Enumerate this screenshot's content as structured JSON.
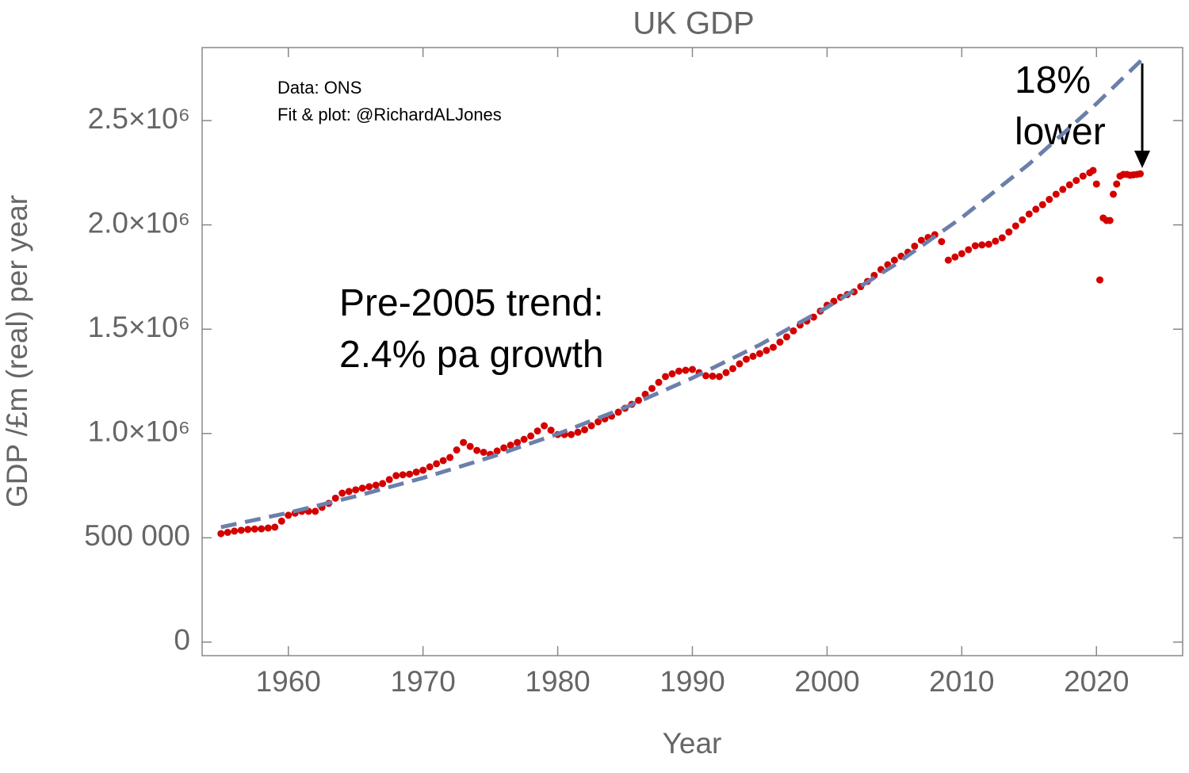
{
  "chart_data": {
    "type": "scatter",
    "title": "UK GDP",
    "x_label": "Year",
    "y_label": "GDP /£m (real) per year",
    "annotations": [
      "Data: ONS",
      "Fit & plot: @RichardALJones",
      "Pre-2005 trend:",
      "2.4% pa growth",
      "18%",
      "lower"
    ],
    "xlim": [
      1953.6,
      2026.4
    ],
    "ylim": [
      -65000,
      2850000
    ],
    "xticks": [
      1960,
      1970,
      1980,
      1990,
      2000,
      2010,
      2020
    ],
    "yticks": [
      0,
      {
        "value": 500000,
        "label": "500 000"
      },
      {
        "value": 1000000,
        "label": "1.0×10⁶"
      },
      {
        "value": 1500000,
        "label": "1.5×10⁶"
      },
      {
        "value": 2000000,
        "label": "2.0×10⁶"
      },
      {
        "value": 2500000,
        "label": "2.5×10⁶"
      }
    ],
    "series": [
      {
        "color": "#d40000",
        "x": [
          1955,
          1955.5,
          1956,
          1956.5,
          1957,
          1957.5,
          1958,
          1958.5,
          1959,
          1959.5,
          1960,
          1960.5,
          1961,
          1961.5,
          1962,
          1962.5,
          1963,
          1963.5,
          1964,
          1964.5,
          1965,
          1965.5,
          1966,
          1966.5,
          1967,
          1967.5,
          1968,
          1968.5,
          1969,
          1969.5,
          1970,
          1970.5,
          1971,
          1971.5,
          1972,
          1972.5,
          1973,
          1973.5,
          1974,
          1974.5,
          1975,
          1975.5,
          1976,
          1976.5,
          1977,
          1977.5,
          1978,
          1978.5,
          1979,
          1979.5,
          1980,
          1980.5,
          1981,
          1981.5,
          1982,
          1982.5,
          1983,
          1983.5,
          1984,
          1984.5,
          1985,
          1985.5,
          1986,
          1986.5,
          1987,
          1987.5,
          1988,
          1988.5,
          1989,
          1989.5,
          1990,
          1990.5,
          1991,
          1991.5,
          1992,
          1992.5,
          1993,
          1993.5,
          1994,
          1994.5,
          1995,
          1995.5,
          1996,
          1996.5,
          1997,
          1997.5,
          1998,
          1998.5,
          1999,
          1999.5,
          2000,
          2000.5,
          2001,
          2001.5,
          2002,
          2002.5,
          2003,
          2003.5,
          2004,
          2004.5,
          2005,
          2005.5,
          2006,
          2006.5,
          2007,
          2007.5,
          2008,
          2008.5,
          2009,
          2009.5,
          2010,
          2010.5,
          2011,
          2011.5,
          2012,
          2012.5,
          2013,
          2013.5,
          2014,
          2014.5,
          2015,
          2015.5,
          2016,
          2016.5,
          2017,
          2017.5,
          2018,
          2018.5,
          2019,
          2019.5,
          2019.75,
          2020,
          2020.25,
          2020.5,
          2020.75,
          2021,
          2021.25,
          2021.5,
          2021.75,
          2022,
          2022.25,
          2022.5,
          2022.75,
          2023,
          2023.25
        ],
        "values": [
          520000,
          526000,
          532000,
          536000,
          540000,
          542000,
          543000,
          547000,
          551000,
          580000,
          608000,
          618000,
          627000,
          627000,
          627000,
          646000,
          665000,
          690000,
          714000,
          722000,
          730000,
          738000,
          745000,
          752000,
          760000,
          779000,
          798000,
          802000,
          805000,
          815000,
          824000,
          840000,
          855000,
          870000,
          885000,
          921000,
          957000,
          938000,
          919000,
          910000,
          900000,
          916000,
          931000,
          944000,
          957000,
          972000,
          988000,
          1012000,
          1037000,
          1016000,
          995000,
          995000,
          995000,
          1006000,
          1018000,
          1037000,
          1056000,
          1070000,
          1083000,
          1102000,
          1121000,
          1140000,
          1159000,
          1188000,
          1216000,
          1245000,
          1273000,
          1286000,
          1299000,
          1303000,
          1307000,
          1292000,
          1277000,
          1275000,
          1273000,
          1292000,
          1311000,
          1334000,
          1356000,
          1370000,
          1383000,
          1398000,
          1413000,
          1438000,
          1463000,
          1492000,
          1520000,
          1539000,
          1558000,
          1587000,
          1615000,
          1634000,
          1653000,
          1666000,
          1679000,
          1704000,
          1729000,
          1758000,
          1786000,
          1809000,
          1831000,
          1850000,
          1869000,
          1898000,
          1926000,
          1940000,
          1953000,
          1920000,
          1831000,
          1846000,
          1862000,
          1881000,
          1900000,
          1904000,
          1907000,
          1922000,
          1938000,
          1966000,
          1995000,
          2024000,
          2052000,
          2075000,
          2097000,
          2122000,
          2147000,
          2170000,
          2192000,
          2213000,
          2234000,
          2250000,
          2261000,
          2196000,
          1736000,
          2033000,
          2021000,
          2021000,
          2147000,
          2196000,
          2234000,
          2242000,
          2242000,
          2238000,
          2240000,
          2242000,
          2245000
        ]
      },
      {
        "color": "#6b7fab",
        "dashed": true,
        "x": [
          1955,
          1960,
          1965,
          1970,
          1975,
          1980,
          1985,
          1990,
          1995,
          2000,
          2005,
          2010,
          2015,
          2020,
          2023.5
        ],
        "values": [
          551000,
          620000,
          699000,
          787000,
          886000,
          998000,
          1124000,
          1266000,
          1425000,
          1605000,
          1807000,
          2035000,
          2292000,
          2581000,
          2800000
        ]
      }
    ]
  }
}
